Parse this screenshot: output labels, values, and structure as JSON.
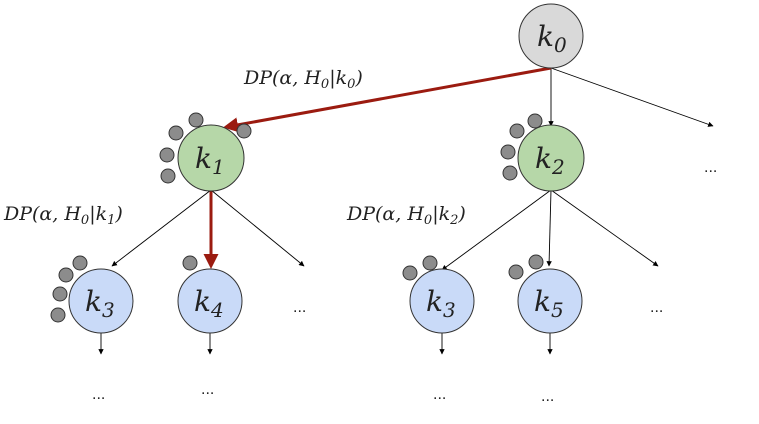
{
  "nodes": {
    "k0": {
      "base": "k",
      "sub": "0",
      "fill": "#d9d9d9"
    },
    "k1": {
      "base": "k",
      "sub": "1",
      "fill": "#b6d7a8"
    },
    "k2": {
      "base": "k",
      "sub": "2",
      "fill": "#b6d7a8"
    },
    "k3a": {
      "base": "k",
      "sub": "3",
      "fill": "#c9daf8"
    },
    "k4": {
      "base": "k",
      "sub": "4",
      "fill": "#c9daf8"
    },
    "k3b": {
      "base": "k",
      "sub": "3",
      "fill": "#c9daf8"
    },
    "k5": {
      "base": "k",
      "sub": "5",
      "fill": "#c9daf8"
    }
  },
  "labels": {
    "dp_k0": {
      "pre": "DP(α, H",
      "h": "0",
      "mid": "|k",
      "k": "0",
      "post": ")"
    },
    "dp_k1": {
      "pre": "DP(α, H",
      "h": "0",
      "mid": "|k",
      "k": "1",
      "post": ")"
    },
    "dp_k2": {
      "pre": "DP(α, H",
      "h": "0",
      "mid": "|k",
      "k": "2",
      "post": ")"
    }
  },
  "ellipsis": "...",
  "colors": {
    "path_arrow": "#9b1b10",
    "edge": "#000000",
    "dot_fill": "#8c8c8c",
    "dot_stroke": "#333333",
    "node_stroke": "#333333"
  }
}
